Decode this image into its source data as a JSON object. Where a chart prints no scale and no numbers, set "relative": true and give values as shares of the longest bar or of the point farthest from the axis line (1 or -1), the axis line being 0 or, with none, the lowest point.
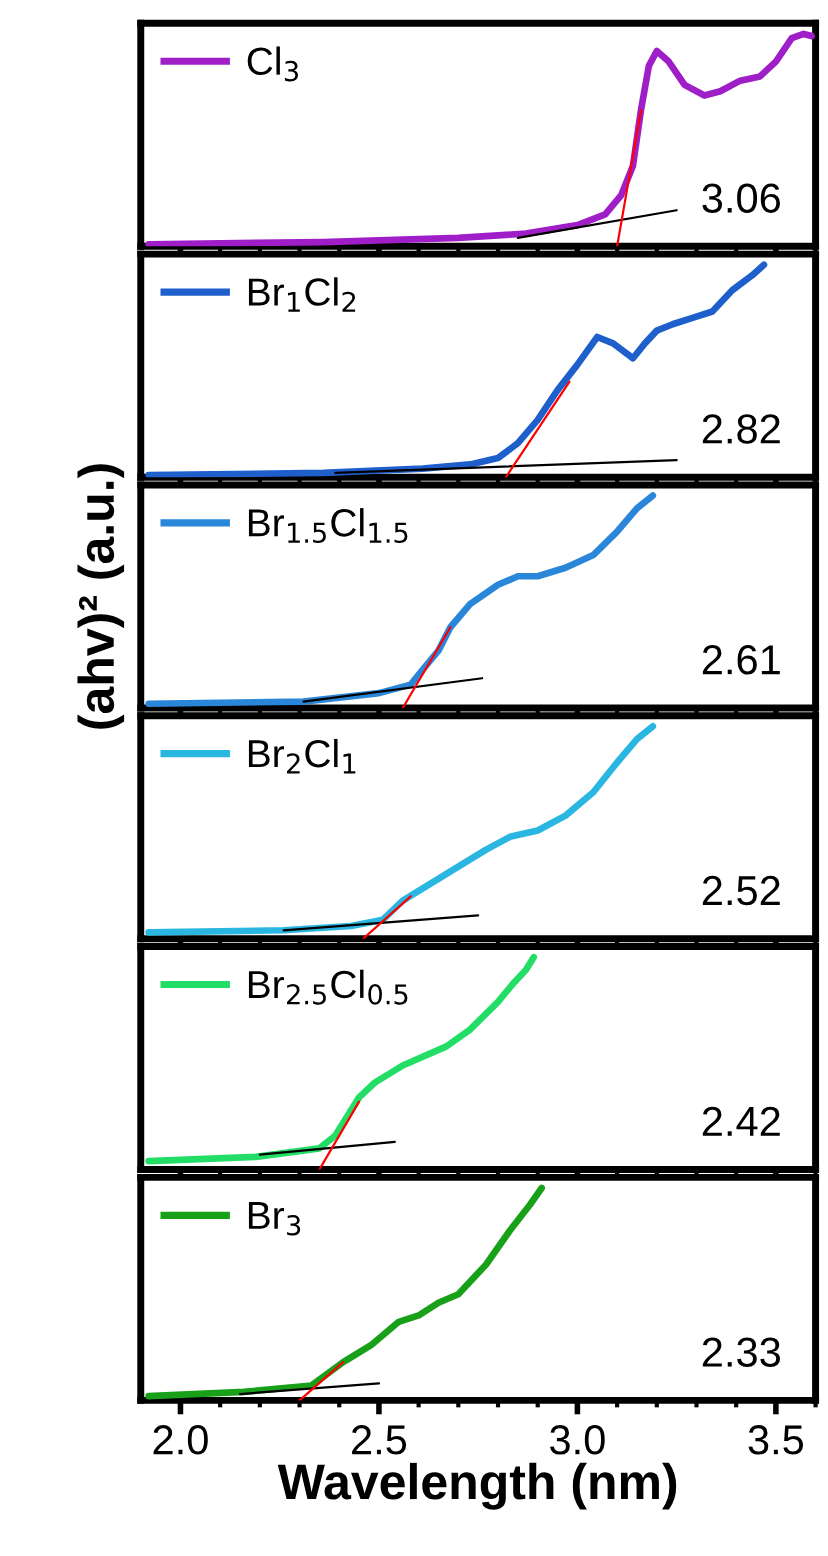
{
  "chart_data": [
    {
      "type": "line",
      "relative": true,
      "xlim": [
        1.9,
        3.6
      ],
      "xticks": [
        {
          "value": 2.0,
          "label": null
        },
        {
          "value": 2.5,
          "label": null
        },
        {
          "value": 3.0,
          "label": null
        },
        {
          "value": 3.5,
          "label": null
        }
      ],
      "tick_labels": false,
      "legend": "top left",
      "annotations": [
        "3.06"
      ],
      "series": [
        {
          "name": "Cl$_{3}$",
          "color": "#a01ec8",
          "x": [
            1.92,
            2.36,
            2.7,
            2.87,
            3.0,
            3.07,
            3.11,
            3.14,
            3.16,
            3.18,
            3.2,
            3.23,
            3.27,
            3.32,
            3.36,
            3.41,
            3.46,
            3.5,
            3.54,
            3.57,
            3.59
          ],
          "values": [
            0.01,
            0.02,
            0.04,
            0.06,
            0.1,
            0.15,
            0.24,
            0.38,
            0.64,
            0.85,
            0.92,
            0.87,
            0.76,
            0.71,
            0.73,
            0.78,
            0.8,
            0.87,
            0.98,
            1.0,
            0.99
          ]
        },
        {
          "color": "#000000",
          "x": [
            2.85,
            3.25
          ],
          "values": [
            0.04,
            0.17
          ]
        },
        {
          "color": "#ff0000",
          "x": [
            3.1,
            3.16
          ],
          "values": [
            0,
            0.64
          ]
        }
      ]
    },
    {
      "type": "line",
      "relative": true,
      "xlim": [
        1.9,
        3.6
      ],
      "xticks": [
        {
          "value": 2.0,
          "label": null
        },
        {
          "value": 2.5,
          "label": null
        },
        {
          "value": 3.0,
          "label": null
        },
        {
          "value": 3.5,
          "label": null
        }
      ],
      "tick_labels": false,
      "legend": "top left",
      "annotations": [
        "2.82"
      ],
      "series": [
        {
          "name": "Br$_{1}$Cl$_{2}$",
          "color": "#1f5fcc",
          "x": [
            1.92,
            2.36,
            2.61,
            2.73,
            2.8,
            2.85,
            2.9,
            2.95,
            3.0,
            3.05,
            3.09,
            3.14,
            3.17,
            3.2,
            3.24,
            3.29,
            3.34,
            3.39,
            3.44,
            3.47
          ],
          "values": [
            0.01,
            0.02,
            0.04,
            0.06,
            0.09,
            0.16,
            0.27,
            0.41,
            0.53,
            0.66,
            0.63,
            0.56,
            0.63,
            0.69,
            0.72,
            0.75,
            0.78,
            0.88,
            0.95,
            1.0
          ]
        },
        {
          "color": "#000000",
          "x": [
            2.39,
            3.25
          ],
          "values": [
            0.02,
            0.08
          ]
        },
        {
          "color": "#ff0000",
          "x": [
            2.82,
            2.98
          ],
          "values": [
            0,
            0.45
          ]
        }
      ]
    },
    {
      "type": "line",
      "relative": true,
      "xlim": [
        1.9,
        3.6
      ],
      "xticks": [
        {
          "value": 2.0,
          "label": null
        },
        {
          "value": 2.5,
          "label": null
        },
        {
          "value": 3.0,
          "label": null
        },
        {
          "value": 3.5,
          "label": null
        }
      ],
      "tick_labels": false,
      "legend": "top left",
      "annotations": [
        "2.61"
      ],
      "ylabel": "(ahv)² (a.u.)",
      "series": [
        {
          "name": "Br$_{1.5}$Cl$_{1.5}$",
          "color": "#2a86d8",
          "x": [
            1.92,
            2.31,
            2.5,
            2.58,
            2.61,
            2.65,
            2.68,
            2.73,
            2.8,
            2.85,
            2.9,
            2.97,
            3.04,
            3.1,
            3.15,
            3.19
          ],
          "values": [
            0.02,
            0.03,
            0.07,
            0.11,
            0.18,
            0.27,
            0.38,
            0.49,
            0.58,
            0.62,
            0.62,
            0.66,
            0.72,
            0.83,
            0.94,
            1.0
          ]
        },
        {
          "color": "#000000",
          "x": [
            2.31,
            2.76
          ],
          "values": [
            0.03,
            0.14
          ]
        },
        {
          "color": "#ff0000",
          "x": [
            2.56,
            2.68
          ],
          "values": [
            0,
            0.38
          ]
        }
      ]
    },
    {
      "type": "line",
      "relative": true,
      "xlim": [
        1.9,
        3.6
      ],
      "xticks": [
        {
          "value": 2.0,
          "label": null
        },
        {
          "value": 2.5,
          "label": null
        },
        {
          "value": 3.0,
          "label": null
        },
        {
          "value": 3.5,
          "label": null
        }
      ],
      "tick_labels": false,
      "legend": "top left",
      "annotations": [
        "2.52"
      ],
      "series": [
        {
          "name": "Br$_{2}$Cl$_{1}$",
          "color": "#29b6e0",
          "x": [
            1.92,
            2.26,
            2.43,
            2.51,
            2.56,
            2.63,
            2.7,
            2.77,
            2.83,
            2.9,
            2.97,
            3.04,
            3.1,
            3.15,
            3.19
          ],
          "values": [
            0.03,
            0.04,
            0.06,
            0.09,
            0.18,
            0.26,
            0.34,
            0.42,
            0.48,
            0.51,
            0.58,
            0.69,
            0.83,
            0.94,
            1.0
          ]
        },
        {
          "color": "#000000",
          "x": [
            2.26,
            2.75
          ],
          "values": [
            0.04,
            0.11
          ]
        },
        {
          "color": "#ff0000",
          "x": [
            2.46,
            2.58
          ],
          "values": [
            0,
            0.2
          ]
        }
      ]
    },
    {
      "type": "line",
      "relative": true,
      "xlim": [
        1.9,
        3.6
      ],
      "xticks": [
        {
          "value": 2.0,
          "label": null
        },
        {
          "value": 2.5,
          "label": null
        },
        {
          "value": 3.0,
          "label": null
        },
        {
          "value": 3.5,
          "label": null
        }
      ],
      "tick_labels": false,
      "legend": "top left",
      "annotations": [
        "2.42"
      ],
      "series": [
        {
          "name": "Br$_{2.5}$Cl$_{0.5}$",
          "color": "#22dd66",
          "x": [
            1.92,
            2.19,
            2.35,
            2.39,
            2.42,
            2.45,
            2.49,
            2.56,
            2.67,
            2.73,
            2.8,
            2.84,
            2.87,
            2.89
          ],
          "values": [
            0.04,
            0.06,
            0.1,
            0.16,
            0.25,
            0.34,
            0.41,
            0.49,
            0.58,
            0.66,
            0.79,
            0.88,
            0.94,
            1.0
          ]
        },
        {
          "color": "#000000",
          "x": [
            2.2,
            2.54
          ],
          "values": [
            0.07,
            0.13
          ]
        },
        {
          "color": "#ff0000",
          "x": [
            2.35,
            2.45
          ],
          "values": [
            0,
            0.32
          ]
        }
      ]
    },
    {
      "type": "line",
      "relative": true,
      "xlabel": "Wavelength (nm)",
      "xlim": [
        1.9,
        3.6
      ],
      "xticks": [
        {
          "value": 2.0,
          "label": "2.0"
        },
        2.5,
        {
          "value": 3.0,
          "label": "3.0"
        },
        3.5
      ],
      "tick_labels": "x",
      "legend": "top left",
      "annotations": [
        "2.33"
      ],
      "series": [
        {
          "name": "Br$_{3}$",
          "color": "#18a018",
          "x": [
            1.92,
            2.16,
            2.33,
            2.41,
            2.48,
            2.55,
            2.6,
            2.65,
            2.7,
            2.77,
            2.83,
            2.88,
            2.91
          ],
          "values": [
            0.02,
            0.04,
            0.07,
            0.18,
            0.26,
            0.37,
            0.4,
            0.46,
            0.5,
            0.64,
            0.8,
            0.92,
            1.0
          ]
        },
        {
          "color": "#000000",
          "x": [
            2.15,
            2.5
          ],
          "values": [
            0.03,
            0.08
          ]
        },
        {
          "color": "#ff0000",
          "x": [
            2.3,
            2.41
          ],
          "values": [
            0,
            0.18
          ]
        }
      ]
    }
  ]
}
